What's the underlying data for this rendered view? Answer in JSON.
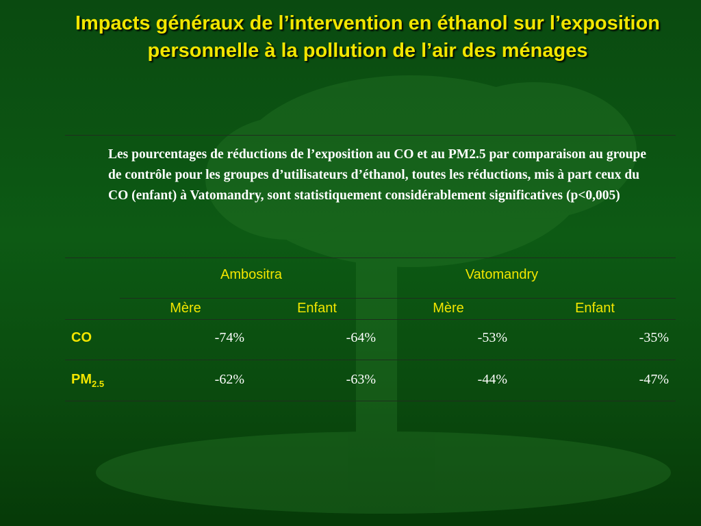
{
  "title": "Impacts généraux de l’intervention en éthanol sur l’exposition personnelle à la pollution de l’air des ménages",
  "caption": "Les pourcentages de réductions de l’exposition au CO et au PM2.5 par comparaison au groupe de contrôle pour les groupes d’utilisateurs d’éthanol, toutes les réductions, mis à part ceux du CO (enfant) à Vatomandry, sont statistiquement considérablement significatives (p<0,005)",
  "table": {
    "groups": [
      "Ambositra",
      "Vatomandry"
    ],
    "columns": [
      "Mère",
      "Enfant",
      "Mère",
      "Enfant"
    ],
    "rows": [
      {
        "label": "CO",
        "values": [
          "-74%",
          "-64%",
          "-53%",
          "-35%"
        ]
      },
      {
        "label": "PM",
        "label_sub": "2.5",
        "values": [
          "-62%",
          "-63%",
          "-44%",
          "-47%"
        ]
      }
    ]
  }
}
